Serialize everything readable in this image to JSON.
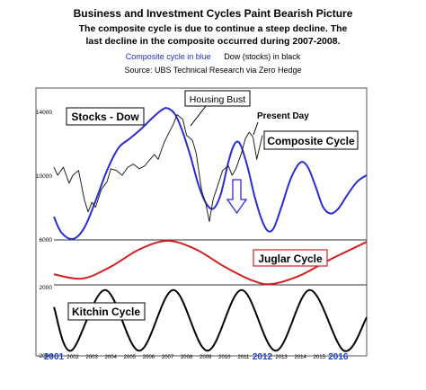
{
  "header": {
    "title": "Business and Investment Cycles Paint Bearish Picture",
    "subtitle_line1": "The composite cycle is due to continue a steep decline.  The",
    "subtitle_line2": "last decline in the composite occurred during 2007-2008.",
    "legend_composite": "Composite cycle in blue",
    "legend_dow": "Dow (stocks) in black",
    "source": "Source:  UBS Technical Research via Zero Hedge"
  },
  "colors": {
    "composite": "#2b2bd6",
    "juglar": "#d42020",
    "kitchin": "#000000",
    "dow": "#222222",
    "year_labels": "#1f3fbf"
  },
  "chart_data": {
    "type": "line",
    "title": "",
    "x_range": [
      2001,
      2017.5
    ],
    "x_ticks_major": [
      "2001",
      "2012",
      "2016"
    ],
    "x_ticks_minor": [
      "2002",
      "2003",
      "2004",
      "2005",
      "2006",
      "2007",
      "2008",
      "2009",
      "2010",
      "2011",
      "2013",
      "2014",
      "2015"
    ],
    "panels": [
      {
        "name": "top",
        "y_ticks": [
          "14000",
          "10000",
          "6000"
        ],
        "series": [
          {
            "name": "Composite Cycle",
            "points": [
              [
                2001,
                7400
              ],
              [
                2001.4,
                6400
              ],
              [
                2002,
                6000
              ],
              [
                2002.6,
                6700
              ],
              [
                2003.2,
                8400
              ],
              [
                2003.8,
                10300
              ],
              [
                2004.4,
                11700
              ],
              [
                2005.0,
                12300
              ],
              [
                2005.6,
                12900
              ],
              [
                2006.2,
                13600
              ],
              [
                2006.7,
                14100
              ],
              [
                2007.0,
                14200
              ],
              [
                2007.4,
                13800
              ],
              [
                2007.8,
                12700
              ],
              [
                2008.2,
                11200
              ],
              [
                2008.6,
                9500
              ],
              [
                2009.0,
                8300
              ],
              [
                2009.4,
                7900
              ],
              [
                2009.8,
                8800
              ],
              [
                2010.2,
                10800
              ],
              [
                2010.5,
                11900
              ],
              [
                2010.8,
                12000
              ],
              [
                2011.2,
                10600
              ],
              [
                2011.6,
                8600
              ],
              [
                2012.0,
                7100
              ],
              [
                2012.3,
                6500
              ],
              [
                2012.6,
                6700
              ],
              [
                2013.0,
                8000
              ],
              [
                2013.5,
                9800
              ],
              [
                2014.0,
                10800
              ],
              [
                2014.4,
                10500
              ],
              [
                2014.8,
                9300
              ],
              [
                2015.2,
                8000
              ],
              [
                2015.6,
                7600
              ],
              [
                2016.0,
                7900
              ],
              [
                2016.5,
                8800
              ],
              [
                2017.0,
                9600
              ],
              [
                2017.5,
                10000
              ]
            ]
          },
          {
            "name": "Stocks - Dow",
            "points": [
              [
                2001,
                10500
              ],
              [
                2001.2,
                10000
              ],
              [
                2001.5,
                10500
              ],
              [
                2001.8,
                9500
              ],
              [
                2002,
                10000
              ],
              [
                2002.3,
                10300
              ],
              [
                2002.6,
                8500
              ],
              [
                2002.8,
                7700
              ],
              [
                2003.0,
                8300
              ],
              [
                2003.2,
                8000
              ],
              [
                2003.5,
                9100
              ],
              [
                2003.8,
                9600
              ],
              [
                2004.0,
                10400
              ],
              [
                2004.3,
                10300
              ],
              [
                2004.6,
                10000
              ],
              [
                2004.9,
                10500
              ],
              [
                2005.2,
                10700
              ],
              [
                2005.5,
                10400
              ],
              [
                2005.8,
                10600
              ],
              [
                2006.0,
                10900
              ],
              [
                2006.3,
                11300
              ],
              [
                2006.5,
                11000
              ],
              [
                2006.8,
                12000
              ],
              [
                2007.0,
                12500
              ],
              [
                2007.3,
                13200
              ],
              [
                2007.5,
                13800
              ],
              [
                2007.8,
                13500
              ],
              [
                2008.0,
                12500
              ],
              [
                2008.3,
                12200
              ],
              [
                2008.5,
                11400
              ],
              [
                2008.8,
                9000
              ],
              [
                2009.0,
                8300
              ],
              [
                2009.2,
                7100
              ],
              [
                2009.4,
                8500
              ],
              [
                2009.6,
                9200
              ],
              [
                2009.9,
                10300
              ],
              [
                2010.2,
                10600
              ],
              [
                2010.4,
                10000
              ],
              [
                2010.6,
                10400
              ],
              [
                2010.9,
                11400
              ],
              [
                2011.1,
                12300
              ],
              [
                2011.3,
                12700
              ],
              [
                2011.5,
                12400
              ],
              [
                2011.7,
                11000
              ],
              [
                2011.9,
                12000
              ],
              [
                2012.0,
                12500
              ]
            ]
          }
        ]
      },
      {
        "name": "middle",
        "series": [
          {
            "name": "Juglar Cycle",
            "points": [
              [
                2001,
                -0.55
              ],
              [
                2002.5,
                -0.75
              ],
              [
                2004.0,
                -0.2
              ],
              [
                2005.5,
                0.6
              ],
              [
                2007.0,
                1.0
              ],
              [
                2008.5,
                0.6
              ],
              [
                2010.0,
                -0.2
              ],
              [
                2011.5,
                -0.85
              ],
              [
                2012.5,
                -1.0
              ],
              [
                2014.0,
                -0.6
              ],
              [
                2015.5,
                0.1
              ],
              [
                2017.5,
                0.95
              ]
            ]
          }
        ]
      },
      {
        "name": "bottom",
        "y_ticks": [
          "2000",
          "-2000"
        ],
        "series": [
          {
            "name": "Kitchin Cycle",
            "points": [
              [
                2001,
                800
              ],
              [
                2001.9,
                -1750
              ],
              [
                2003.7,
                1800
              ],
              [
                2005.5,
                -1750
              ],
              [
                2007.3,
                1800
              ],
              [
                2009.1,
                -1750
              ],
              [
                2010.9,
                1800
              ],
              [
                2012.7,
                -1750
              ],
              [
                2014.5,
                1800
              ],
              [
                2016.3,
                -1750
              ],
              [
                2017.5,
                200
              ]
            ]
          }
        ]
      }
    ],
    "annotations": [
      "Stocks - Dow",
      "Housing Bust",
      "Present Day",
      "Composite Cycle",
      "Juglar Cycle",
      "Kitchin Cycle"
    ]
  }
}
